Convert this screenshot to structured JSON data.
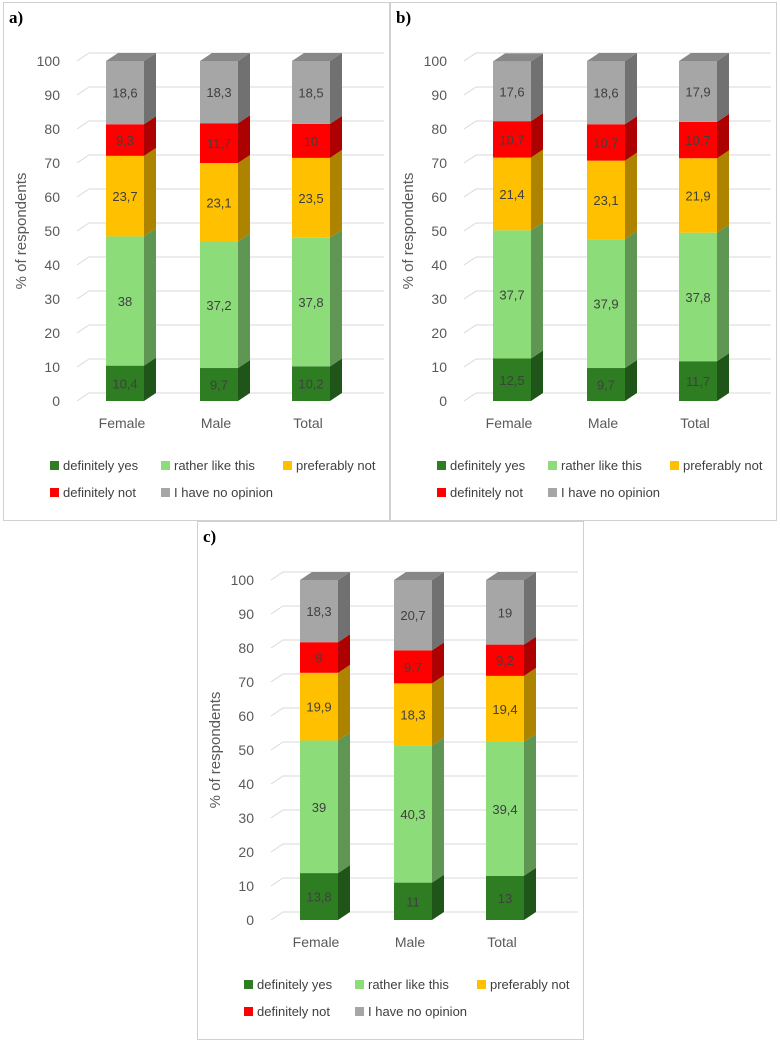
{
  "colors": {
    "definitely_yes": "#2e7d23",
    "rather_like_this": "#8ddc7a",
    "preferably_not": "#ffc000",
    "definitely_not": "#ff0000",
    "no_opinion": "#a6a6a6"
  },
  "chart_data": [
    {
      "type": "bar",
      "stacked": true,
      "style": "3d",
      "panel_label": "a)",
      "ylabel": "% of respondents",
      "ylim": [
        0,
        100
      ],
      "yticks": [
        0,
        10,
        20,
        30,
        40,
        50,
        60,
        70,
        80,
        90,
        100
      ],
      "grid": true,
      "legend_position": "bottom",
      "categories": [
        "Female",
        "Male",
        "Total"
      ],
      "series": [
        {
          "name": "definitely yes",
          "values": [
            10.4,
            9.7,
            10.2
          ],
          "labels": [
            "10,4",
            "9,7",
            "10,2"
          ]
        },
        {
          "name": "rather like this",
          "values": [
            38,
            37.2,
            37.8
          ],
          "labels": [
            "38",
            "37,2",
            "37,8"
          ]
        },
        {
          "name": "preferably not",
          "values": [
            23.7,
            23.1,
            23.5
          ],
          "labels": [
            "23,7",
            "23,1",
            "23,5"
          ]
        },
        {
          "name": "definitely not",
          "values": [
            9.3,
            11.7,
            10
          ],
          "labels": [
            "9,3",
            "11,7",
            "10"
          ]
        },
        {
          "name": "I have no opinion",
          "values": [
            18.6,
            18.3,
            18.5
          ],
          "labels": [
            "18,6",
            "18,3",
            "18,5"
          ]
        }
      ]
    },
    {
      "type": "bar",
      "stacked": true,
      "style": "3d",
      "panel_label": "b)",
      "ylabel": "% of respondents",
      "ylim": [
        0,
        100
      ],
      "yticks": [
        0,
        10,
        20,
        30,
        40,
        50,
        60,
        70,
        80,
        90,
        100
      ],
      "grid": true,
      "legend_position": "bottom",
      "categories": [
        "Female",
        "Male",
        "Total"
      ],
      "series": [
        {
          "name": "definitely yes",
          "values": [
            12.5,
            9.7,
            11.7
          ],
          "labels": [
            "12,5",
            "9,7",
            "11,7"
          ]
        },
        {
          "name": "rather like this",
          "values": [
            37.7,
            37.9,
            37.8
          ],
          "labels": [
            "37,7",
            "37,9",
            "37,8"
          ]
        },
        {
          "name": "preferably not",
          "values": [
            21.4,
            23.1,
            21.9
          ],
          "labels": [
            "21,4",
            "23,1",
            "21,9"
          ]
        },
        {
          "name": "definitely not",
          "values": [
            10.7,
            10.7,
            10.7
          ],
          "labels": [
            "10,7",
            "10,7",
            "10,7"
          ]
        },
        {
          "name": "I have no opinion",
          "values": [
            17.6,
            18.6,
            17.9
          ],
          "labels": [
            "17,6",
            "18,6",
            "17,9"
          ]
        }
      ]
    },
    {
      "type": "bar",
      "stacked": true,
      "style": "3d",
      "panel_label": "c)",
      "ylabel": "% of respondents",
      "ylim": [
        0,
        100
      ],
      "yticks": [
        0,
        10,
        20,
        30,
        40,
        50,
        60,
        70,
        80,
        90,
        100
      ],
      "grid": true,
      "legend_position": "bottom",
      "categories": [
        "Female",
        "Male",
        "Total"
      ],
      "series": [
        {
          "name": "definitely yes",
          "values": [
            13.8,
            11,
            13
          ],
          "labels": [
            "13,8",
            "11",
            "13"
          ]
        },
        {
          "name": "rather like this",
          "values": [
            39,
            40.3,
            39.4
          ],
          "labels": [
            "39",
            "40,3",
            "39,4"
          ]
        },
        {
          "name": "preferably not",
          "values": [
            19.9,
            18.3,
            19.4
          ],
          "labels": [
            "19,9",
            "18,3",
            "19,4"
          ]
        },
        {
          "name": "definitely not",
          "values": [
            9,
            9.7,
            9.2
          ],
          "labels": [
            "9",
            "9,7",
            "9,2"
          ]
        },
        {
          "name": "I have no opinion",
          "values": [
            18.3,
            20.7,
            19
          ],
          "labels": [
            "18,3",
            "20,7",
            "19"
          ]
        }
      ]
    }
  ]
}
